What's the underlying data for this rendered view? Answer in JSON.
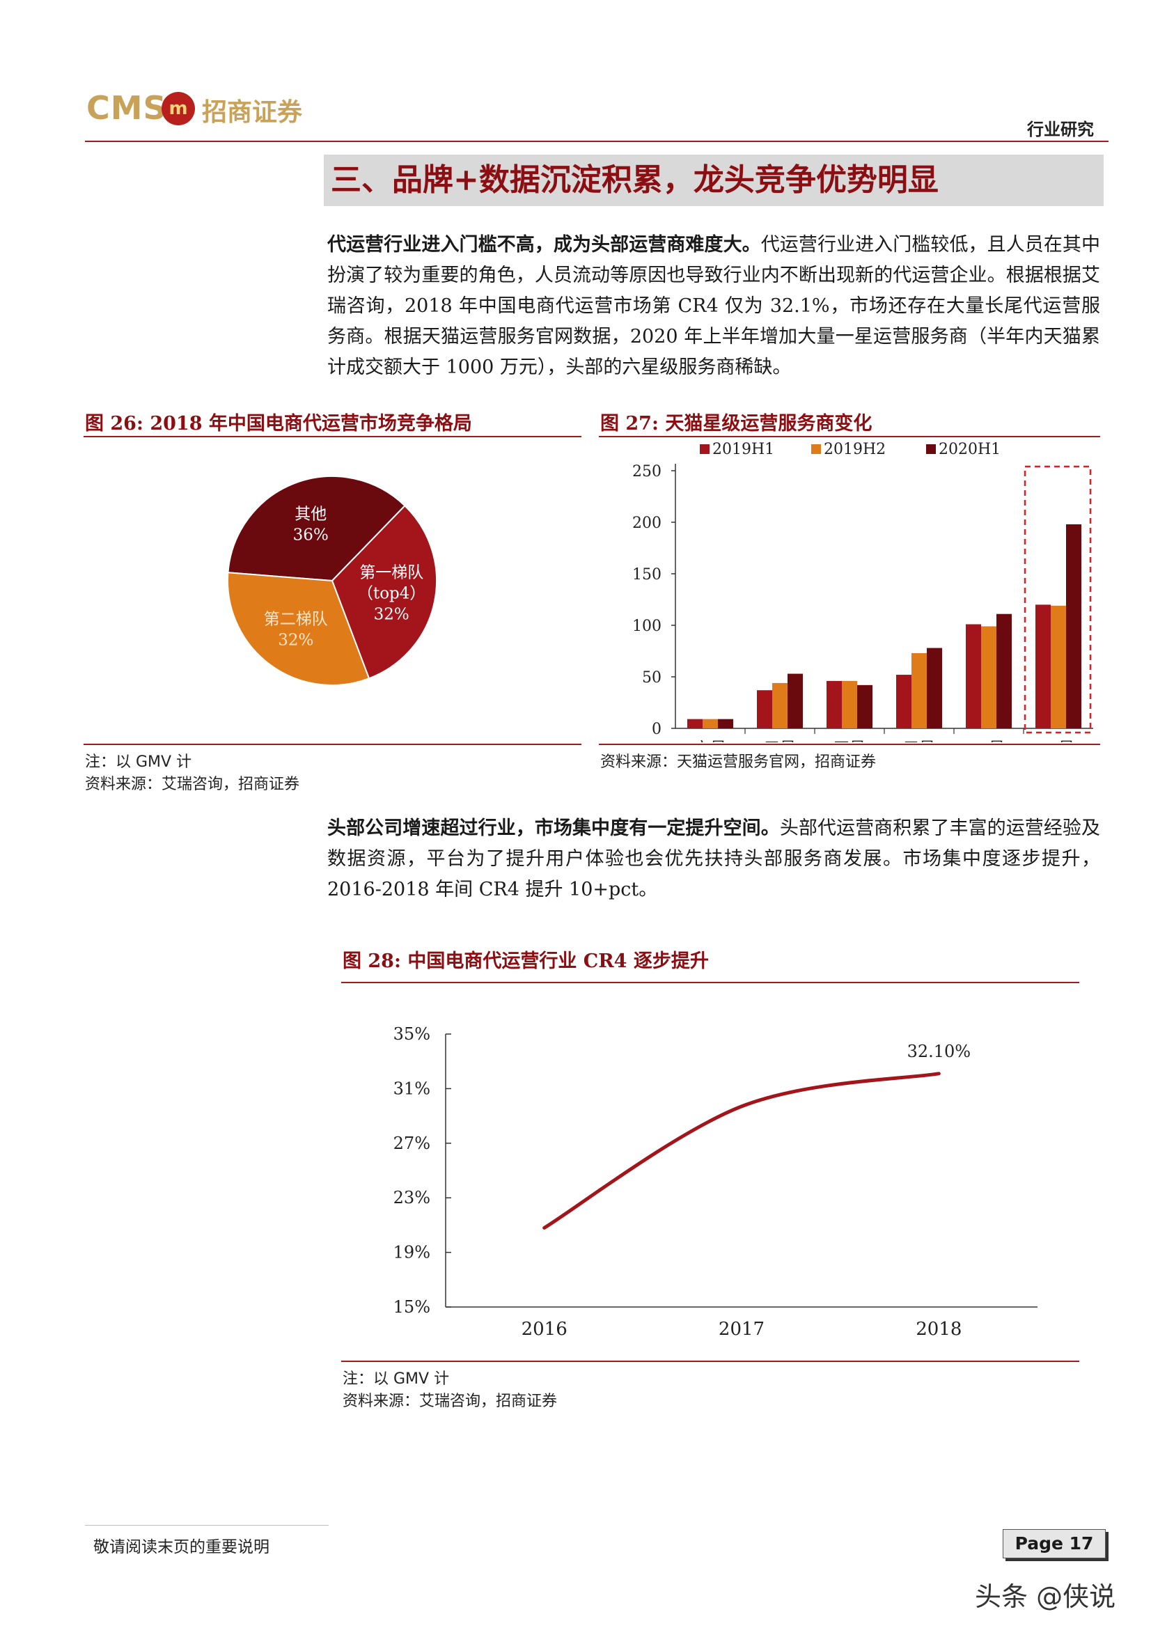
{
  "header": {
    "logo_cms": "CMS",
    "logo_mark": "m",
    "logo_cn": "招商证券",
    "category": "行业研究"
  },
  "section": {
    "title": "三、品牌+数据沉淀积累，龙头竞争优势明显"
  },
  "para1": {
    "bold": "代运营行业进入门槛不高，成为头部运营商难度大。",
    "text": "代运营行业进入门槛较低，且人员在其中扮演了较为重要的角色，人员流动等原因也导致行业内不断出现新的代运营企业。根据根据艾瑞咨询，2018 年中国电商代运营市场第 CR4 仅为 32.1%，市场还存在大量长尾代运营服务商。根据天猫运营服务官网数据，2020 年上半年增加大量一星运营服务商（半年内天猫累计成交额大于 1000 万元），头部的六星级服务商稀缺。"
  },
  "fig26": {
    "title": "图 26:  2018 年中国电商代运营市场竞争格局",
    "note": "注：以 GMV 计",
    "source": "资料来源：艾瑞咨询，招商证券"
  },
  "fig27": {
    "title": "图 27:  天猫星级运营服务商变化",
    "source": "资料来源：天猫运营服务官网，招商证券"
  },
  "para2": {
    "bold": "头部公司增速超过行业，市场集中度有一定提升空间。",
    "text": "头部代运营商积累了丰富的运营经验及数据资源，平台为了提升用户体验也会优先扶持头部服务商发展。市场集中度逐步提升，2016-2018 年间 CR4 提升 10+pct。"
  },
  "fig28": {
    "title": "图 28:  中国电商代运营行业 CR4 逐步提升",
    "note": "注：以 GMV 计",
    "source": "资料来源：艾瑞咨询，招商证券"
  },
  "footer": {
    "disclaimer": "敬请阅读末页的重要说明",
    "page": "Page  17",
    "watermark": "头条 @侠说"
  },
  "chart_data": [
    {
      "type": "pie",
      "labels": [
        "其他",
        "第一梯队（top4）",
        "第二梯队"
      ],
      "label_lines": [
        [
          "其他",
          "36%"
        ],
        [
          "第一梯队",
          "（top4）",
          "32%"
        ],
        [
          "第二梯队",
          "32%"
        ]
      ],
      "values": [
        36,
        32,
        32
      ],
      "colors": [
        "#6b0a0e",
        "#a3151a",
        "#e07b1a"
      ]
    },
    {
      "type": "bar",
      "categories": [
        "六星",
        "五星",
        "四星",
        "三星",
        "二星",
        "一星"
      ],
      "series": [
        {
          "name": "2019H1",
          "values": [
            9,
            37,
            46,
            52,
            101,
            120
          ],
          "color": "#a3151a"
        },
        {
          "name": "2019H2",
          "values": [
            9,
            44,
            46,
            73,
            99,
            119
          ],
          "color": "#e07b1a"
        },
        {
          "name": "2020H1",
          "values": [
            9,
            53,
            42,
            78,
            111,
            198
          ],
          "color": "#6b0a0e"
        }
      ],
      "ylim": [
        0,
        250
      ],
      "yticks": [
        "250",
        "200",
        "150",
        "100",
        "50",
        "0"
      ],
      "legend": "top",
      "highlight_category": "一星"
    },
    {
      "type": "line",
      "x": [
        "2016",
        "2017",
        "2018"
      ],
      "series": [
        {
          "values": [
            20.8,
            29.7,
            32.1
          ],
          "color": "#a3151a"
        }
      ],
      "ylim": [
        15,
        35
      ],
      "yticks": [
        "35%",
        "31%",
        "27%",
        "23%",
        "19%",
        "15%"
      ],
      "data_label": "32.10%"
    }
  ]
}
